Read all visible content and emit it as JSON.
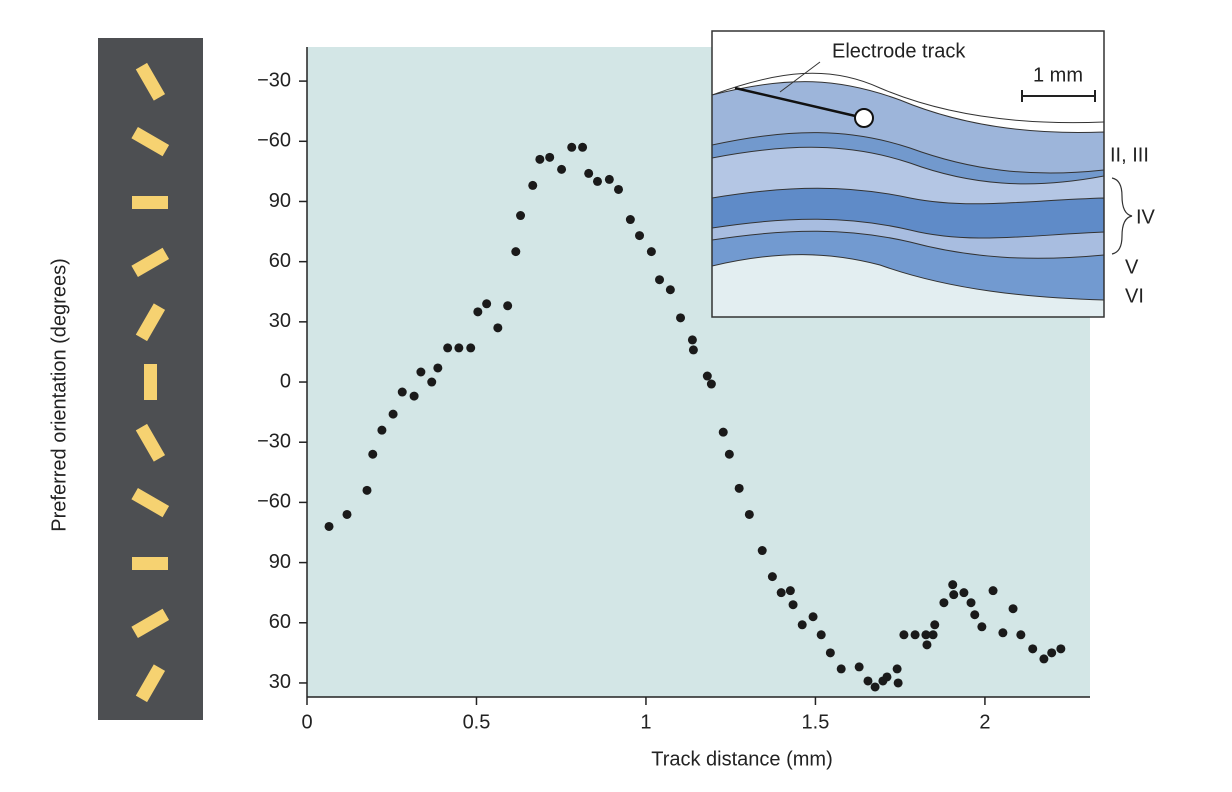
{
  "chart_data": {
    "type": "scatter",
    "x_label": "Track distance (mm)",
    "y_label": "Preferred orientation (degrees)",
    "annotations": [
      "Electrode track",
      "1 mm",
      "II, III",
      "IV",
      "V",
      "VI"
    ],
    "color": "#1a1a1a",
    "background": "#d3e6e6",
    "xlim": [
      0,
      2.31
    ],
    "ylim": [
      23,
      347
    ],
    "xticks": [
      0,
      0.5,
      1,
      1.5,
      2
    ],
    "yticks": [
      30,
      {
        "value": 60,
        "label": "60"
      },
      {
        "value": 90,
        "label": "90"
      },
      {
        "value": 120,
        "label": "−60"
      },
      {
        "value": 150,
        "label": "−30"
      },
      {
        "value": 180,
        "label": "0"
      },
      {
        "value": 210,
        "label": "30"
      },
      {
        "value": 240,
        "label": "60"
      },
      {
        "value": 270,
        "label": "90"
      },
      {
        "value": 300,
        "label": "−60"
      },
      {
        "value": 330,
        "label": "−30"
      }
    ],
    "x": [
      0.065,
      0.118,
      0.177,
      0.194,
      0.221,
      0.254,
      0.281,
      0.316,
      0.336,
      0.368,
      0.386,
      0.415,
      0.448,
      0.483,
      0.504,
      0.53,
      0.563,
      0.592,
      0.616,
      0.63,
      0.666,
      0.687,
      0.716,
      0.751,
      0.781,
      0.813,
      0.831,
      0.857,
      0.892,
      0.919,
      0.954,
      0.981,
      1.016,
      1.04,
      1.072,
      1.102,
      1.137,
      1.14,
      1.181,
      1.193,
      1.228,
      1.246,
      1.275,
      1.305,
      1.343,
      1.373,
      1.399,
      1.426,
      1.434,
      1.461,
      1.493,
      1.517,
      1.544,
      1.576,
      1.629,
      1.655,
      1.676,
      1.699,
      1.711,
      1.741,
      1.744,
      1.761,
      1.794,
      1.826,
      1.829,
      1.847,
      1.852,
      1.879,
      1.905,
      1.908,
      1.938,
      1.959,
      1.97,
      1.991,
      2.024,
      2.053,
      2.083,
      2.106,
      2.141,
      2.174,
      2.197,
      2.224
    ],
    "values": [
      108,
      114,
      126,
      144,
      156,
      164,
      175,
      173,
      185,
      180,
      187,
      197,
      197,
      197,
      215,
      219,
      207,
      218,
      245,
      263,
      278,
      291,
      292,
      286,
      297,
      297,
      284,
      280,
      281,
      276,
      261,
      253,
      245,
      231,
      226,
      212,
      201,
      196,
      183,
      179,
      155,
      144,
      127,
      114,
      96,
      83,
      75,
      76,
      69,
      59,
      63,
      54,
      45,
      37,
      38,
      31,
      28,
      31,
      33,
      37,
      30,
      54,
      54,
      54,
      49,
      54,
      59,
      70,
      79,
      74,
      75,
      70,
      64,
      58,
      76,
      55,
      67,
      54,
      47,
      42,
      45,
      47
    ]
  }
}
